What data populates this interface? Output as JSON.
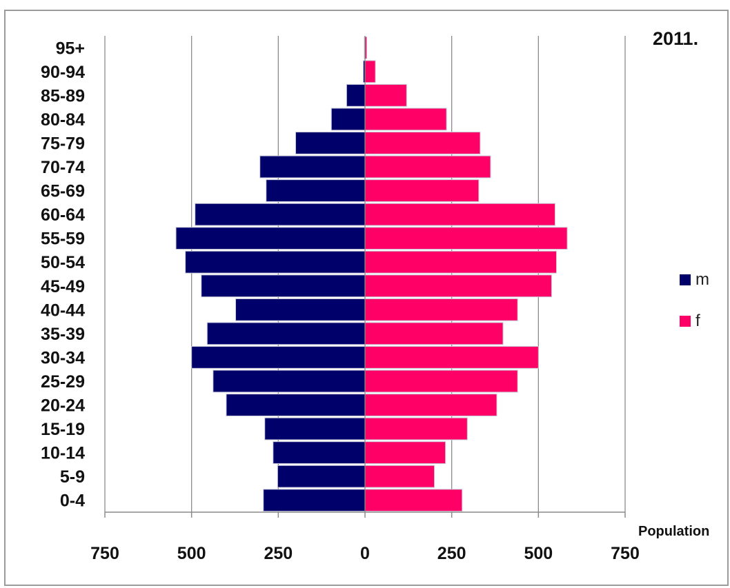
{
  "chart_data": {
    "type": "bar",
    "orientation": "horizontal",
    "layout": "population-pyramid",
    "title": "2011.",
    "xlabel": "Population",
    "ylabel": "",
    "xlim": [
      -750,
      750
    ],
    "xticks": [
      -750,
      -500,
      -250,
      0,
      250,
      500,
      750
    ],
    "xtick_labels": [
      "750",
      "500",
      "250",
      "0",
      "250",
      "500",
      "750"
    ],
    "grid": "vertical",
    "legend_position": "right",
    "categories": [
      "0-4",
      "5-9",
      "10-14",
      "15-19",
      "20-24",
      "25-29",
      "30-34",
      "35-39",
      "40-44",
      "45-49",
      "50-54",
      "55-59",
      "60-64",
      "65-69",
      "70-74",
      "75-79",
      "80-84",
      "85-89",
      "90-94",
      "95+"
    ],
    "series": [
      {
        "name": "m",
        "color": "#00006b",
        "values": [
          293,
          252,
          265,
          289,
          400,
          438,
          500,
          455,
          373,
          472,
          518,
          545,
          490,
          285,
          303,
          200,
          97,
          53,
          5,
          2
        ]
      },
      {
        "name": "f",
        "color": "#ff0066",
        "values": [
          280,
          200,
          232,
          295,
          380,
          440,
          500,
          398,
          440,
          538,
          552,
          583,
          548,
          328,
          362,
          332,
          235,
          120,
          30,
          5
        ]
      }
    ]
  }
}
